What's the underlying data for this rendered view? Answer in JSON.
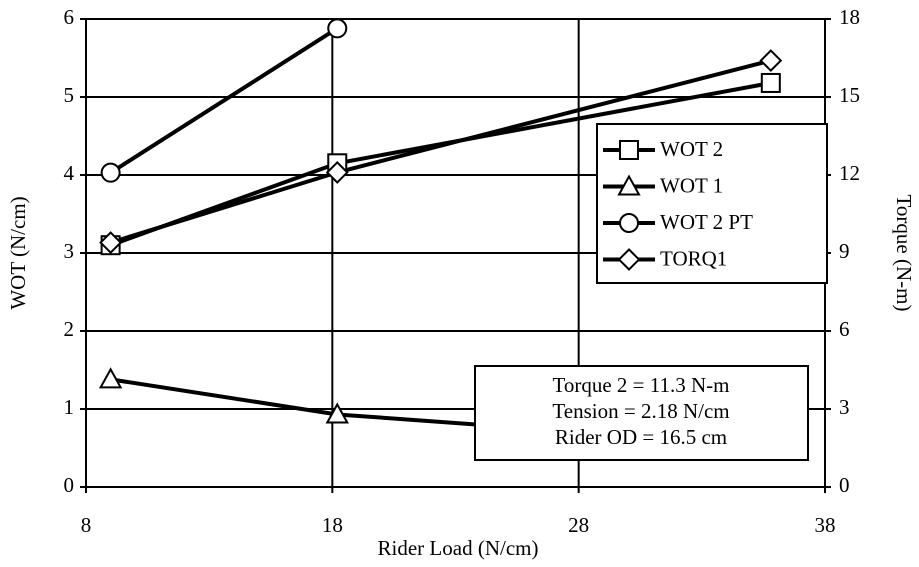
{
  "chart_data": {
    "type": "line",
    "x_label": "Rider Load (N/cm)",
    "y_label": "WOT (N/cm)",
    "y2_label": "Torque (N-m)",
    "xlim": [
      8,
      38
    ],
    "xticks": [
      8,
      18,
      28,
      38
    ],
    "ylim": [
      0,
      6
    ],
    "yticks": [
      0,
      1,
      2,
      3,
      4,
      5,
      6
    ],
    "y2lim": [
      0,
      18
    ],
    "y2ticks": [
      0,
      3,
      6,
      9,
      12,
      15,
      18
    ],
    "grid": true,
    "legend": "right",
    "series": [
      {
        "name": "WOT 2",
        "color": "#000000",
        "marker": "square",
        "x": [
          9,
          18.2,
          35.8
        ],
        "values": [
          3.1,
          4.15,
          5.18
        ]
      },
      {
        "name": "WOT 1",
        "color": "#000000",
        "marker": "triangle",
        "x": [
          9,
          18.2,
          35.8
        ],
        "values": [
          1.38,
          0.93,
          0.53
        ]
      },
      {
        "name": "WOT 2 PT",
        "color": "#000000",
        "marker": "circle",
        "x": [
          9,
          18.2
        ],
        "values": [
          4.03,
          5.88
        ]
      },
      {
        "name": "TORQ1",
        "color": "#000000",
        "marker": "diamond",
        "axis": "y2",
        "x": [
          9,
          18.2,
          35.8
        ],
        "values": [
          9.4,
          12.1,
          16.4
        ]
      }
    ],
    "annotations": [
      "Torque 2 = 11.3 N-m",
      "Tension = 2.18 N/cm",
      "Rider OD = 16.5 cm"
    ]
  }
}
